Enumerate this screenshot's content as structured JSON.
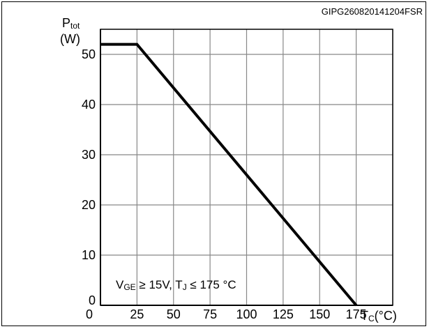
{
  "figure": {
    "id_label": "GIPG260820141204FSR"
  },
  "chart_data": {
    "type": "line",
    "title": "",
    "y_axis_label": {
      "main": "P",
      "sub": "tot",
      "unit": "(W)"
    },
    "x_axis_label": {
      "main": "T",
      "sub": "C",
      "unit": "(°C)"
    },
    "xlim": [
      0,
      200
    ],
    "ylim": [
      0,
      55
    ],
    "x_ticks": [
      0,
      25,
      50,
      75,
      100,
      125,
      150,
      175
    ],
    "x_tick_labels": [
      "0",
      "25",
      "50",
      "75",
      "100",
      "125",
      "150",
      "175"
    ],
    "y_ticks": [
      0,
      10,
      20,
      30,
      40,
      50
    ],
    "y_tick_labels": [
      "0",
      "10",
      "20",
      "30",
      "40",
      "50"
    ],
    "grid": true,
    "series": [
      {
        "x": [
          0,
          25,
          175
        ],
        "y": [
          52,
          52,
          0
        ],
        "color": "#000000"
      }
    ],
    "annotation": {
      "parts": [
        {
          "t": "V",
          "sub": false
        },
        {
          "t": "GE",
          "sub": true
        },
        {
          "t": " ≥ 15V, T",
          "sub": false
        },
        {
          "t": "J",
          "sub": true
        },
        {
          "t": " ≤ 175 °C",
          "sub": false
        }
      ],
      "position": "bottom-left"
    }
  }
}
